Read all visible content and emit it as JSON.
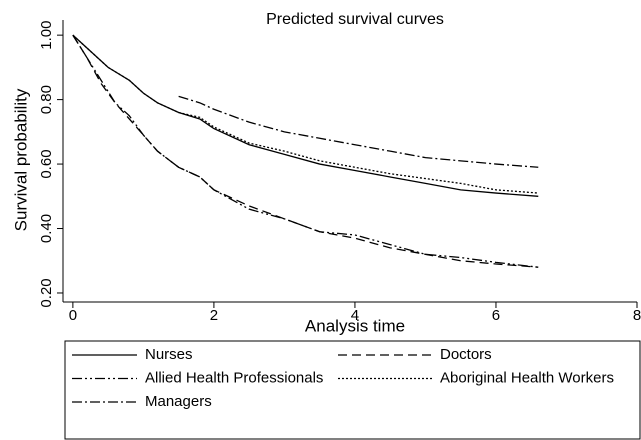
{
  "chart_data": {
    "type": "line",
    "title": "Predicted survival curves",
    "x_label": "Analysis time",
    "y_label": "Survival probability",
    "xlim": [
      -0.14,
      8
    ],
    "ylim": [
      0.172,
      1.047
    ],
    "xticks": [
      0,
      2,
      4,
      6,
      8
    ],
    "yticks": [
      {
        "value": 0.2,
        "label": "0.20"
      },
      {
        "value": 0.4,
        "label": "0.40"
      },
      {
        "value": 0.6,
        "label": "0.60"
      },
      {
        "value": 0.8,
        "label": "0.80"
      },
      {
        "value": 1.0,
        "label": "1.00"
      }
    ],
    "series": [
      {
        "name": "Nurses",
        "color": "#000000",
        "style": "solid",
        "x": [
          0,
          0.2,
          0.5,
          0.8,
          1.0,
          1.2,
          1.5,
          1.8,
          2.0,
          2.5,
          3.0,
          3.5,
          4.0,
          4.5,
          5.0,
          5.5,
          6.0,
          6.6
        ],
        "values": [
          1.0,
          0.96,
          0.9,
          0.86,
          0.82,
          0.79,
          0.76,
          0.74,
          0.71,
          0.66,
          0.63,
          0.6,
          0.58,
          0.56,
          0.54,
          0.52,
          0.51,
          0.5
        ]
      },
      {
        "name": "Doctors",
        "color": "#000000",
        "style": "dashed",
        "x": [
          0,
          0.2,
          0.4,
          0.6,
          0.8,
          1.0,
          1.2,
          1.5,
          1.8,
          2.0,
          2.5,
          3.0,
          3.5,
          4.0,
          4.5,
          5.0,
          5.5,
          6.0,
          6.6
        ],
        "values": [
          1.0,
          0.93,
          0.85,
          0.79,
          0.74,
          0.69,
          0.64,
          0.59,
          0.56,
          0.52,
          0.47,
          0.43,
          0.39,
          0.37,
          0.34,
          0.32,
          0.3,
          0.29,
          0.28
        ]
      },
      {
        "name": "Allied Health Professionals",
        "color": "#000000",
        "style": "dash-dot-dot",
        "x": [
          0,
          0.2,
          0.4,
          0.6,
          0.8,
          1.0,
          1.2,
          1.5,
          1.8,
          2.0,
          2.5,
          3.0,
          3.5,
          4.0,
          4.5,
          5.0,
          5.5,
          6.0,
          6.6
        ],
        "values": [
          1.0,
          0.93,
          0.86,
          0.79,
          0.75,
          0.69,
          0.64,
          0.59,
          0.56,
          0.52,
          0.46,
          0.43,
          0.39,
          0.38,
          0.35,
          0.32,
          0.31,
          0.295,
          0.28
        ]
      },
      {
        "name": "Aboriginal Health Workers",
        "color": "#000000",
        "style": "dotted",
        "x": [
          0,
          0.2,
          0.5,
          0.8,
          1.0,
          1.2,
          1.5,
          1.8,
          2.0,
          2.5,
          3.0,
          3.5,
          4.0,
          4.5,
          5.0,
          5.5,
          6.0,
          6.6
        ],
        "values": [
          1.0,
          0.96,
          0.9,
          0.86,
          0.82,
          0.79,
          0.76,
          0.745,
          0.715,
          0.665,
          0.64,
          0.61,
          0.59,
          0.57,
          0.555,
          0.54,
          0.52,
          0.51
        ]
      },
      {
        "name": "Managers",
        "color": "#000000",
        "style": "dash-dot",
        "x": [
          1.5,
          1.8,
          2.0,
          2.5,
          3.0,
          3.5,
          4.0,
          4.5,
          5.0,
          5.5,
          6.0,
          6.6
        ],
        "values": [
          0.81,
          0.79,
          0.77,
          0.73,
          0.7,
          0.68,
          0.66,
          0.64,
          0.62,
          0.61,
          0.6,
          0.59
        ]
      }
    ]
  }
}
